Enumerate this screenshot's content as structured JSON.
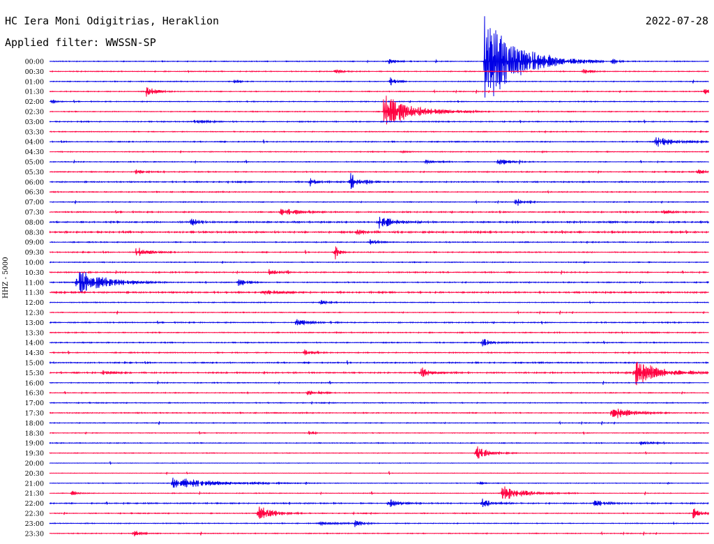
{
  "header": {
    "station": "HC Iera Moni Odigitrias, Heraklion",
    "date": "2022-07-28",
    "filter": "Applied filter: WWSSN-SP",
    "channel": "HHZ - 5000"
  },
  "colors": {
    "blue_trace": "#0000e6",
    "red_trace": "#ff0040",
    "background": "#ffffff"
  },
  "chart_data": {
    "type": "line",
    "title": "HC Iera Moni Odigitrias, Heraklion",
    "ylabel": "HHZ - 5000",
    "row_labels": [
      "00:00",
      "00:30",
      "01:00",
      "01:30",
      "02:00",
      "02:30",
      "03:00",
      "03:30",
      "04:00",
      "04:30",
      "05:00",
      "05:30",
      "06:00",
      "06:30",
      "07:00",
      "07:30",
      "08:00",
      "08:30",
      "09:00",
      "09:30",
      "10:00",
      "10:30",
      "11:00",
      "11:30",
      "12:00",
      "12:30",
      "13:00",
      "13:30",
      "14:00",
      "14:30",
      "15:00",
      "15:30",
      "16:00",
      "16:30",
      "17:00",
      "17:30",
      "18:00",
      "18:30",
      "19:00",
      "19:30",
      "20:00",
      "20:30",
      "21:00",
      "21:30",
      "22:00",
      "22:30",
      "23:00",
      "23:30"
    ],
    "row_colors": [
      "blue",
      "red"
    ],
    "row_span_minutes": 30,
    "baseline_noise": [
      0.5,
      0.5,
      0.5,
      0.5,
      0.5,
      0.5,
      0.6,
      0.5,
      0.6,
      0.5,
      0.5,
      0.6,
      0.7,
      0.6,
      0.5,
      0.7,
      0.9,
      1.0,
      0.6,
      0.6,
      0.5,
      0.7,
      0.6,
      0.9,
      0.5,
      0.5,
      0.6,
      0.6,
      0.6,
      0.6,
      0.7,
      0.8,
      0.5,
      0.5,
      0.5,
      0.6,
      0.5,
      0.4,
      0.5,
      0.4,
      0.3,
      0.3,
      0.4,
      0.4,
      0.7,
      0.5,
      0.5,
      0.5
    ],
    "events": [
      {
        "row": 0,
        "minute": 15.4,
        "amp": 6,
        "dur": 0.5
      },
      {
        "row": 0,
        "minute": 19.8,
        "amp": 68,
        "dur": 2.5
      },
      {
        "row": 0,
        "minute": 25.6,
        "amp": 3,
        "dur": 0.5
      },
      {
        "row": 1,
        "minute": 13.0,
        "amp": 3,
        "dur": 0.6
      },
      {
        "row": 1,
        "minute": 24.3,
        "amp": 3,
        "dur": 0.6
      },
      {
        "row": 2,
        "minute": 15.5,
        "amp": 6,
        "dur": 0.5
      },
      {
        "row": 2,
        "minute": 8.4,
        "amp": 3,
        "dur": 0.4
      },
      {
        "row": 3,
        "minute": 4.4,
        "amp": 8,
        "dur": 0.7
      },
      {
        "row": 3,
        "minute": 29.8,
        "amp": 7,
        "dur": 0.3
      },
      {
        "row": 4,
        "minute": 0.1,
        "amp": 4,
        "dur": 0.3
      },
      {
        "row": 5,
        "minute": 15.2,
        "amp": 25,
        "dur": 2.2
      },
      {
        "row": 6,
        "minute": 6.6,
        "amp": 3,
        "dur": 1.0
      },
      {
        "row": 8,
        "minute": 27.6,
        "amp": 8,
        "dur": 1.4
      },
      {
        "row": 9,
        "minute": 16.0,
        "amp": 3,
        "dur": 0.3
      },
      {
        "row": 10,
        "minute": 20.4,
        "amp": 6,
        "dur": 0.8
      },
      {
        "row": 10,
        "minute": 17.1,
        "amp": 3,
        "dur": 0.8
      },
      {
        "row": 11,
        "minute": 3.9,
        "amp": 3,
        "dur": 0.6
      },
      {
        "row": 11,
        "minute": 29.5,
        "amp": 3,
        "dur": 0.6
      },
      {
        "row": 12,
        "minute": 11.8,
        "amp": 8,
        "dur": 0.5
      },
      {
        "row": 12,
        "minute": 13.7,
        "amp": 13,
        "dur": 0.8
      },
      {
        "row": 14,
        "minute": 21.2,
        "amp": 3,
        "dur": 1.0
      },
      {
        "row": 15,
        "minute": 10.5,
        "amp": 6,
        "dur": 1.3
      },
      {
        "row": 15,
        "minute": 27.9,
        "amp": 5,
        "dur": 0.6
      },
      {
        "row": 16,
        "minute": 6.4,
        "amp": 7,
        "dur": 0.6
      },
      {
        "row": 16,
        "minute": 15.0,
        "amp": 11,
        "dur": 1.0
      },
      {
        "row": 17,
        "minute": 14.0,
        "amp": 5,
        "dur": 0.6
      },
      {
        "row": 18,
        "minute": 14.6,
        "amp": 5,
        "dur": 0.5
      },
      {
        "row": 19,
        "minute": 3.9,
        "amp": 9,
        "dur": 0.9
      },
      {
        "row": 19,
        "minute": 13.0,
        "amp": 11,
        "dur": 0.3
      },
      {
        "row": 21,
        "minute": 10.0,
        "amp": 4,
        "dur": 0.6
      },
      {
        "row": 22,
        "minute": 1.2,
        "amp": 22,
        "dur": 2.0
      },
      {
        "row": 22,
        "minute": 8.6,
        "amp": 6,
        "dur": 0.6
      },
      {
        "row": 23,
        "minute": 9.7,
        "amp": 3,
        "dur": 1.2
      },
      {
        "row": 24,
        "minute": 12.3,
        "amp": 3,
        "dur": 0.8
      },
      {
        "row": 26,
        "minute": 11.2,
        "amp": 5,
        "dur": 1.0
      },
      {
        "row": 28,
        "minute": 19.7,
        "amp": 6,
        "dur": 0.7
      },
      {
        "row": 29,
        "minute": 11.6,
        "amp": 5,
        "dur": 0.6
      },
      {
        "row": 31,
        "minute": 2.4,
        "amp": 5,
        "dur": 0.6
      },
      {
        "row": 31,
        "minute": 16.9,
        "amp": 10,
        "dur": 0.7
      },
      {
        "row": 31,
        "minute": 26.6,
        "amp": 22,
        "dur": 1.8
      },
      {
        "row": 33,
        "minute": 11.7,
        "amp": 4,
        "dur": 1.0
      },
      {
        "row": 35,
        "minute": 25.6,
        "amp": 11,
        "dur": 1.3
      },
      {
        "row": 37,
        "minute": 11.8,
        "amp": 4,
        "dur": 0.4
      },
      {
        "row": 38,
        "minute": 26.9,
        "amp": 4,
        "dur": 0.7
      },
      {
        "row": 39,
        "minute": 19.4,
        "amp": 12,
        "dur": 0.9
      },
      {
        "row": 42,
        "minute": 5.6,
        "amp": 9,
        "dur": 3.2
      },
      {
        "row": 42,
        "minute": 19.5,
        "amp": 2,
        "dur": 0.4
      },
      {
        "row": 43,
        "minute": 20.6,
        "amp": 12,
        "dur": 1.6
      },
      {
        "row": 43,
        "minute": 1.0,
        "amp": 3,
        "dur": 0.5
      },
      {
        "row": 44,
        "minute": 15.4,
        "amp": 7,
        "dur": 0.8
      },
      {
        "row": 44,
        "minute": 19.7,
        "amp": 7,
        "dur": 0.8
      },
      {
        "row": 44,
        "minute": 24.8,
        "amp": 5,
        "dur": 0.8
      },
      {
        "row": 45,
        "minute": 9.5,
        "amp": 14,
        "dur": 1.0
      },
      {
        "row": 45,
        "minute": 29.3,
        "amp": 8,
        "dur": 0.6
      },
      {
        "row": 46,
        "minute": 13.9,
        "amp": 5,
        "dur": 0.6
      },
      {
        "row": 46,
        "minute": 12.3,
        "amp": 2,
        "dur": 1.3
      },
      {
        "row": 47,
        "minute": 3.8,
        "amp": 5,
        "dur": 0.6
      }
    ]
  }
}
